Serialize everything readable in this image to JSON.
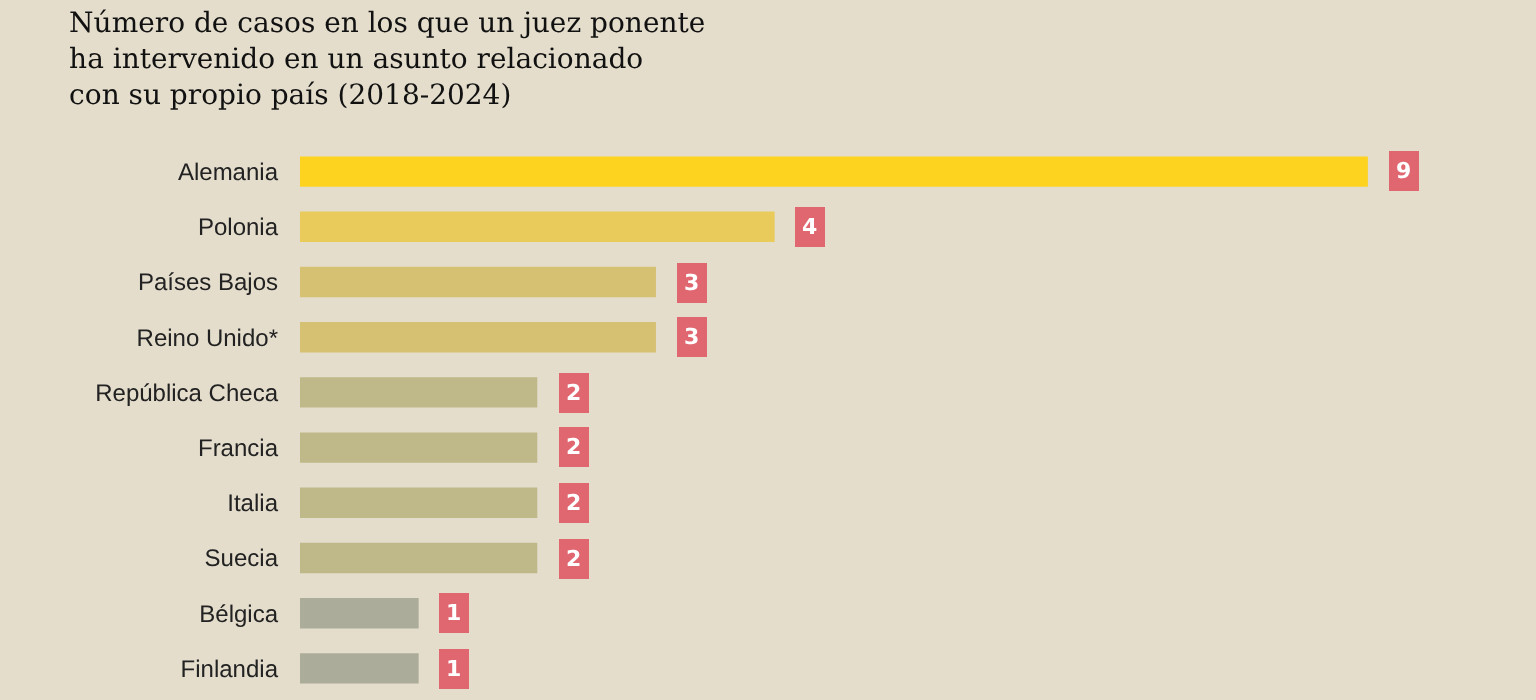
{
  "chart_data": {
    "type": "bar",
    "orientation": "horizontal",
    "title": "Número de casos en los que un juez ponente\nha intervenido en un asunto relacionado\ncon su propio país (2018-2024)",
    "categories": [
      "Alemania",
      "Polonia",
      "Países Bajos",
      "Reino Unido*",
      "República Checa",
      "Francia",
      "Italia",
      "Suecia",
      "Bélgica",
      "Finlandia"
    ],
    "values": [
      9,
      4,
      3,
      3,
      2,
      2,
      2,
      2,
      1,
      1
    ],
    "colors": [
      "#fdd31f",
      "#e8cb5a",
      "#d6c173",
      "#d6c173",
      "#bfb98a",
      "#bfb98a",
      "#bfb98a",
      "#bfb98a",
      "#acac9a",
      "#acac9a"
    ],
    "data_labels": true,
    "grid": false,
    "legend": false
  }
}
